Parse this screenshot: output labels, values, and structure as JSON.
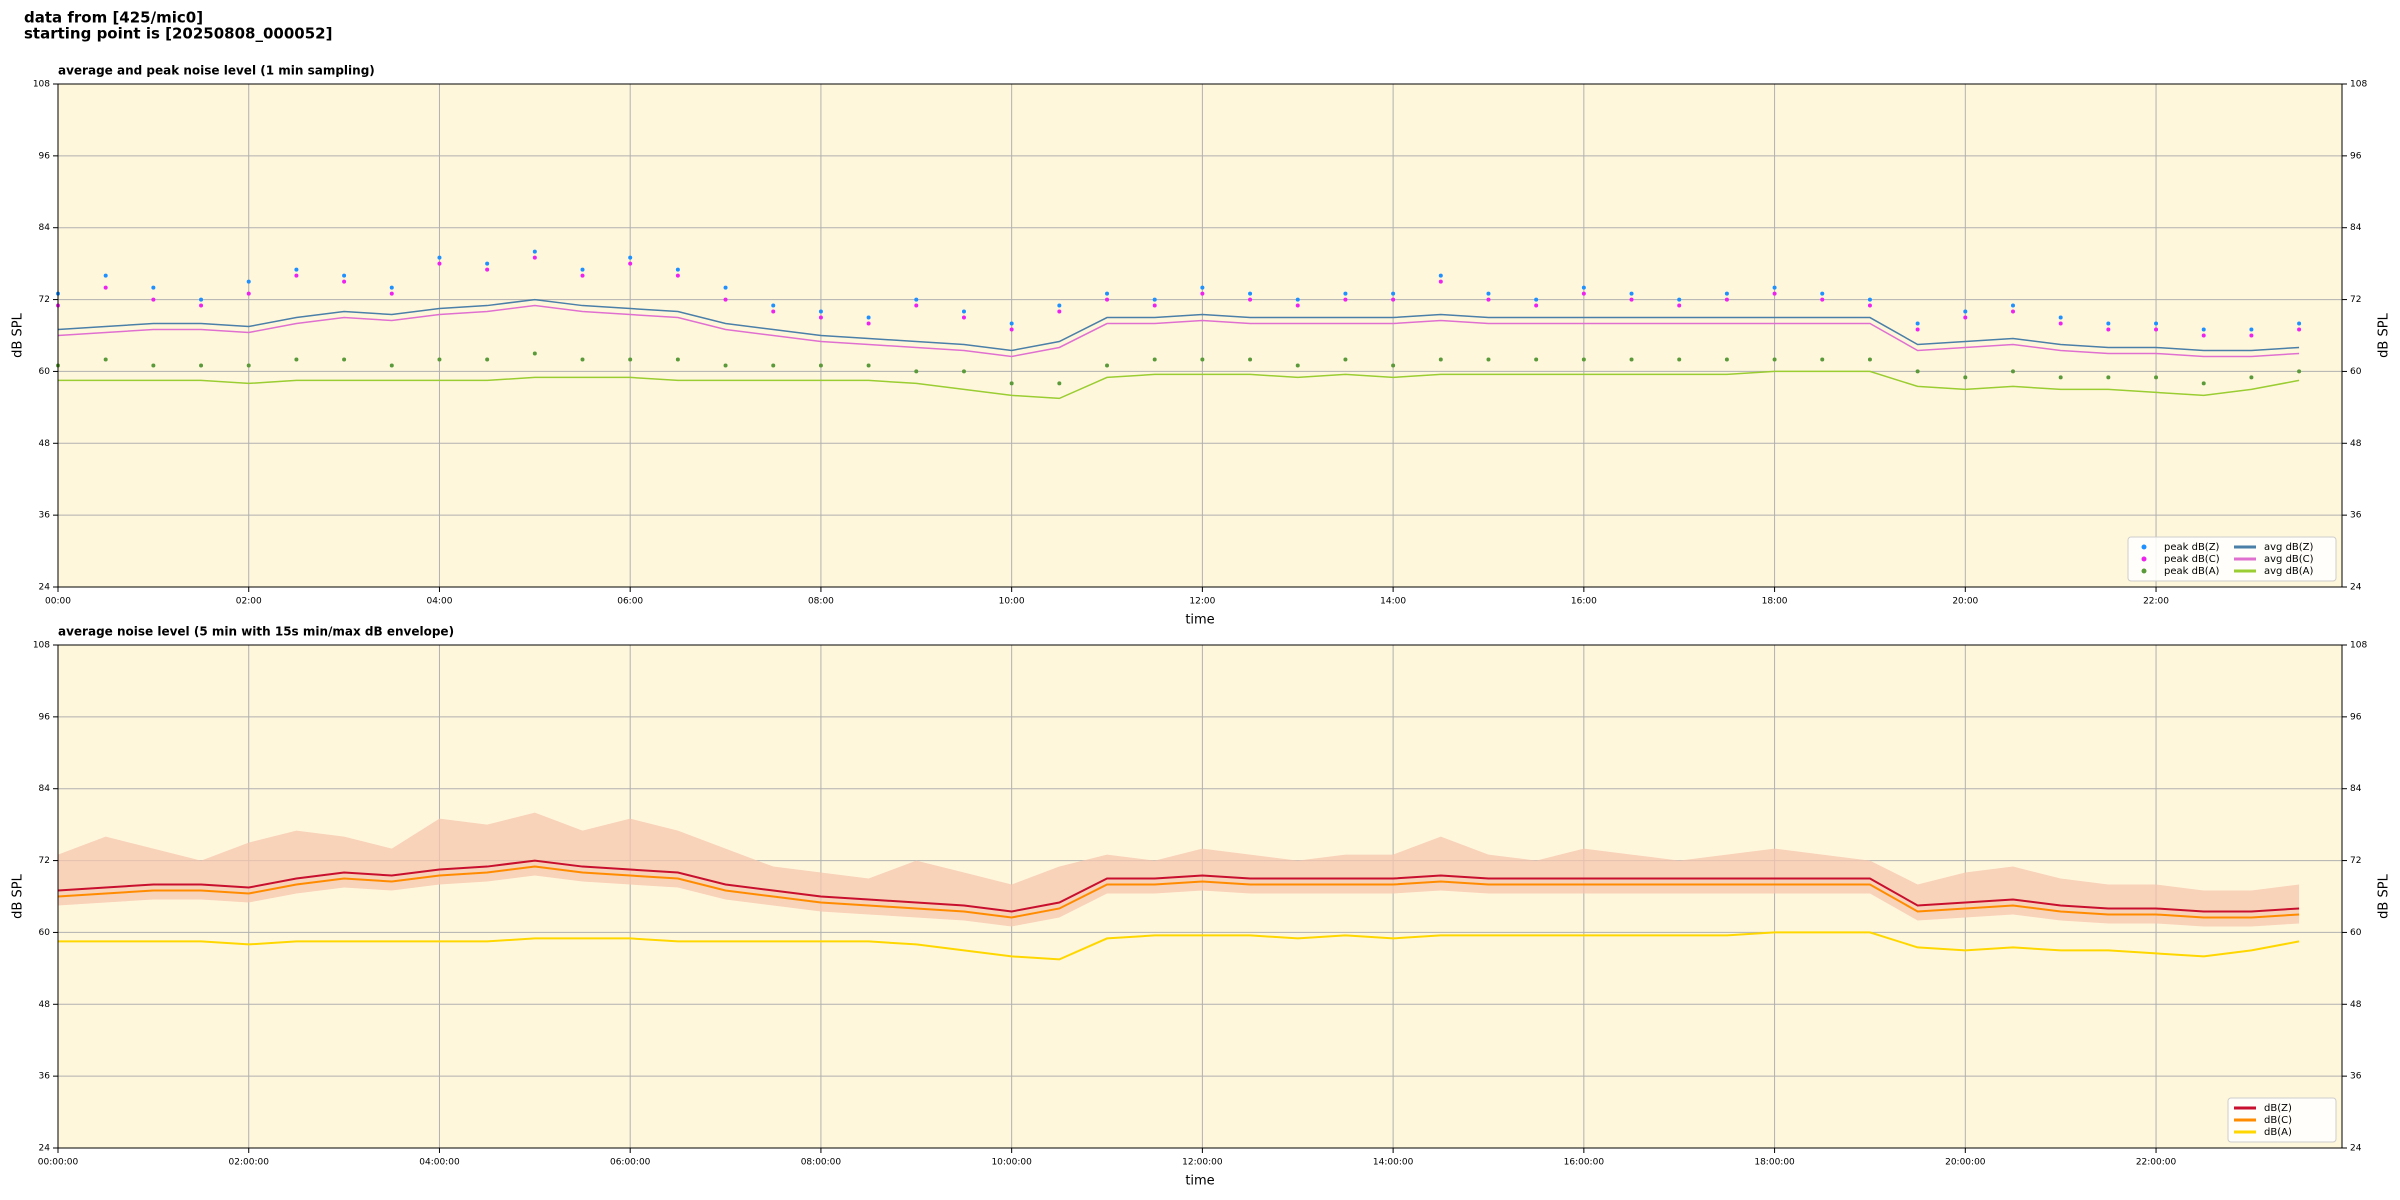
{
  "header": {
    "lines": [
      "data from [425/mic0]",
      "starting point is [20250808_000052]"
    ]
  },
  "chart_data": [
    {
      "type": "line",
      "title": "average and peak noise level (1 min sampling)",
      "xlabel": "time",
      "ylabel": "dB SPL",
      "x": [
        0,
        0.5,
        1,
        1.5,
        2,
        2.5,
        3,
        3.5,
        4,
        4.5,
        5,
        5.5,
        6,
        6.5,
        7,
        7.5,
        8,
        8.5,
        9,
        9.5,
        10,
        10.5,
        11,
        11.5,
        12,
        12.5,
        13,
        13.5,
        14,
        14.5,
        15,
        15.5,
        16,
        16.5,
        17,
        17.5,
        18,
        18.5,
        19,
        19.5,
        20,
        20.5,
        21,
        21.5,
        22,
        22.5,
        23,
        23.5
      ],
      "xlim": [
        0,
        23.95
      ],
      "ylim": [
        24,
        108
      ],
      "yticks": [
        24,
        36,
        48,
        60,
        72,
        84,
        96,
        108
      ],
      "xticks": [
        {
          "value": 0,
          "label": "00:00"
        },
        {
          "value": 2,
          "label": "02:00"
        },
        {
          "value": 4,
          "label": "04:00"
        },
        {
          "value": 6,
          "label": "06:00"
        },
        {
          "value": 8,
          "label": "08:00"
        },
        {
          "value": 10,
          "label": "10:00"
        },
        {
          "value": 12,
          "label": "12:00"
        },
        {
          "value": 14,
          "label": "14:00"
        },
        {
          "value": 16,
          "label": "16:00"
        },
        {
          "value": 18,
          "label": "18:00"
        },
        {
          "value": 20,
          "label": "20:00"
        },
        {
          "value": 22,
          "label": "22:00"
        }
      ],
      "grid": true,
      "background": "#fff7dc",
      "legend": "lower right",
      "legend_columns": 2,
      "series": [
        {
          "name": "peak dB(Z)",
          "style": "dots",
          "color": "#1e90ff",
          "values": [
            73,
            76,
            74,
            72,
            75,
            77,
            76,
            74,
            79,
            78,
            80,
            77,
            79,
            77,
            74,
            71,
            70,
            69,
            72,
            70,
            68,
            71,
            73,
            72,
            74,
            73,
            72,
            73,
            73,
            76,
            73,
            72,
            74,
            73,
            72,
            73,
            74,
            73,
            72,
            68,
            70,
            71,
            69,
            68,
            68,
            67,
            67,
            68
          ]
        },
        {
          "name": "peak dB(C)",
          "style": "dots",
          "color": "#ee22ee",
          "values": [
            71,
            74,
            72,
            71,
            73,
            76,
            75,
            73,
            78,
            77,
            79,
            76,
            78,
            76,
            72,
            70,
            69,
            68,
            71,
            69,
            67,
            70,
            72,
            71,
            73,
            72,
            71,
            72,
            72,
            75,
            72,
            71,
            73,
            72,
            71,
            72,
            73,
            72,
            71,
            67,
            69,
            70,
            68,
            67,
            67,
            66,
            66,
            67
          ]
        },
        {
          "name": "peak dB(A)",
          "style": "dots",
          "color": "#5a9a3a",
          "values": [
            61,
            62,
            61,
            61,
            61,
            62,
            62,
            61,
            62,
            62,
            63,
            62,
            62,
            62,
            61,
            61,
            61,
            61,
            60,
            60,
            58,
            58,
            61,
            62,
            62,
            62,
            61,
            62,
            61,
            62,
            62,
            62,
            62,
            62,
            62,
            62,
            62,
            62,
            62,
            60,
            59,
            60,
            59,
            59,
            59,
            58,
            59,
            60
          ]
        },
        {
          "name": "avg dB(Z)",
          "style": "line",
          "color": "#4a7fa8",
          "values": [
            67,
            67.5,
            68,
            68,
            67.5,
            69,
            70,
            69.5,
            70.5,
            71,
            72,
            71,
            70.5,
            70,
            68,
            67,
            66,
            65.5,
            65,
            64.5,
            63.5,
            65,
            69,
            69,
            69.5,
            69,
            69,
            69,
            69,
            69.5,
            69,
            69,
            69,
            69,
            69,
            69,
            69,
            69,
            69,
            64.5,
            65,
            65.5,
            64.5,
            64,
            64,
            63.5,
            63.5,
            64
          ]
        },
        {
          "name": "avg dB(C)",
          "style": "line",
          "color": "#e070d0",
          "values": [
            66,
            66.5,
            67,
            67,
            66.5,
            68,
            69,
            68.5,
            69.5,
            70,
            71,
            70,
            69.5,
            69,
            67,
            66,
            65,
            64.5,
            64,
            63.5,
            62.5,
            64,
            68,
            68,
            68.5,
            68,
            68,
            68,
            68,
            68.5,
            68,
            68,
            68,
            68,
            68,
            68,
            68,
            68,
            68,
            63.5,
            64,
            64.5,
            63.5,
            63,
            63,
            62.5,
            62.5,
            63
          ]
        },
        {
          "name": "avg dB(A)",
          "style": "line",
          "color": "#9acd32",
          "values": [
            58.5,
            58.5,
            58.5,
            58.5,
            58,
            58.5,
            58.5,
            58.5,
            58.5,
            58.5,
            59,
            59,
            59,
            58.5,
            58.5,
            58.5,
            58.5,
            58.5,
            58,
            57,
            56,
            55.5,
            59,
            59.5,
            59.5,
            59.5,
            59,
            59.5,
            59,
            59.5,
            59.5,
            59.5,
            59.5,
            59.5,
            59.5,
            59.5,
            60,
            60,
            60,
            57.5,
            57,
            57.5,
            57,
            57,
            56.5,
            56,
            57,
            58.5
          ]
        }
      ]
    },
    {
      "type": "line",
      "title": "average noise level (5 min with 15s min/max dB envelope)",
      "xlabel": "time",
      "ylabel": "dB SPL",
      "x": [
        0,
        0.5,
        1,
        1.5,
        2,
        2.5,
        3,
        3.5,
        4,
        4.5,
        5,
        5.5,
        6,
        6.5,
        7,
        7.5,
        8,
        8.5,
        9,
        9.5,
        10,
        10.5,
        11,
        11.5,
        12,
        12.5,
        13,
        13.5,
        14,
        14.5,
        15,
        15.5,
        16,
        16.5,
        17,
        17.5,
        18,
        18.5,
        19,
        19.5,
        20,
        20.5,
        21,
        21.5,
        22,
        22.5,
        23,
        23.5
      ],
      "xlim": [
        0,
        23.95
      ],
      "ylim": [
        24,
        108
      ],
      "yticks": [
        24,
        36,
        48,
        60,
        72,
        84,
        96,
        108
      ],
      "xticks": [
        {
          "value": 0,
          "label": "00:00:00"
        },
        {
          "value": 2,
          "label": "02:00:00"
        },
        {
          "value": 4,
          "label": "04:00:00"
        },
        {
          "value": 6,
          "label": "06:00:00"
        },
        {
          "value": 8,
          "label": "08:00:00"
        },
        {
          "value": 10,
          "label": "10:00:00"
        },
        {
          "value": 12,
          "label": "12:00:00"
        },
        {
          "value": 14,
          "label": "14:00:00"
        },
        {
          "value": 16,
          "label": "16:00:00"
        },
        {
          "value": 18,
          "label": "18:00:00"
        },
        {
          "value": 20,
          "label": "20:00:00"
        },
        {
          "value": 22,
          "label": "22:00:00"
        }
      ],
      "grid": true,
      "background": "#fff7dc",
      "legend": "lower right",
      "legend_columns": 1,
      "envelope": {
        "color": "#f5c6ad",
        "low": [
          64.5,
          65,
          65.5,
          65.5,
          65,
          66.5,
          67.5,
          67,
          68,
          68.5,
          69.5,
          68.5,
          68,
          67.5,
          65.5,
          64.5,
          63.5,
          63,
          62.5,
          62,
          61,
          62.5,
          66.5,
          66.5,
          67,
          66.5,
          66.5,
          66.5,
          66.5,
          67,
          66.5,
          66.5,
          66.5,
          66.5,
          66.5,
          66.5,
          66.5,
          66.5,
          66.5,
          62,
          62.5,
          63,
          62,
          61.5,
          61.5,
          61,
          61,
          61.5
        ],
        "high": [
          73,
          76,
          74,
          72,
          75,
          77,
          76,
          74,
          79,
          78,
          80,
          77,
          79,
          77,
          74,
          71,
          70,
          69,
          72,
          70,
          68,
          71,
          73,
          72,
          74,
          73,
          72,
          73,
          73,
          76,
          73,
          72,
          74,
          73,
          72,
          73,
          74,
          73,
          72,
          68,
          70,
          71,
          69,
          68,
          68,
          67,
          67,
          68
        ]
      },
      "series": [
        {
          "name": "dB(Z)",
          "style": "line",
          "color": "#c8102e",
          "values": [
            67,
            67.5,
            68,
            68,
            67.5,
            69,
            70,
            69.5,
            70.5,
            71,
            72,
            71,
            70.5,
            70,
            68,
            67,
            66,
            65.5,
            65,
            64.5,
            63.5,
            65,
            69,
            69,
            69.5,
            69,
            69,
            69,
            69,
            69.5,
            69,
            69,
            69,
            69,
            69,
            69,
            69,
            69,
            69,
            64.5,
            65,
            65.5,
            64.5,
            64,
            64,
            63.5,
            63.5,
            64
          ]
        },
        {
          "name": "dB(C)",
          "style": "line",
          "color": "#ff8c00",
          "values": [
            66,
            66.5,
            67,
            67,
            66.5,
            68,
            69,
            68.5,
            69.5,
            70,
            71,
            70,
            69.5,
            69,
            67,
            66,
            65,
            64.5,
            64,
            63.5,
            62.5,
            64,
            68,
            68,
            68.5,
            68,
            68,
            68,
            68,
            68.5,
            68,
            68,
            68,
            68,
            68,
            68,
            68,
            68,
            68,
            63.5,
            64,
            64.5,
            63.5,
            63,
            63,
            62.5,
            62.5,
            63
          ]
        },
        {
          "name": "dB(A)",
          "style": "line",
          "color": "#ffd700",
          "values": [
            58.5,
            58.5,
            58.5,
            58.5,
            58,
            58.5,
            58.5,
            58.5,
            58.5,
            58.5,
            59,
            59,
            59,
            58.5,
            58.5,
            58.5,
            58.5,
            58.5,
            58,
            57,
            56,
            55.5,
            59,
            59.5,
            59.5,
            59.5,
            59,
            59.5,
            59,
            59.5,
            59.5,
            59.5,
            59.5,
            59.5,
            59.5,
            59.5,
            60,
            60,
            60,
            57.5,
            57,
            57.5,
            57,
            57,
            56.5,
            56,
            57,
            58.5
          ]
        }
      ]
    }
  ]
}
